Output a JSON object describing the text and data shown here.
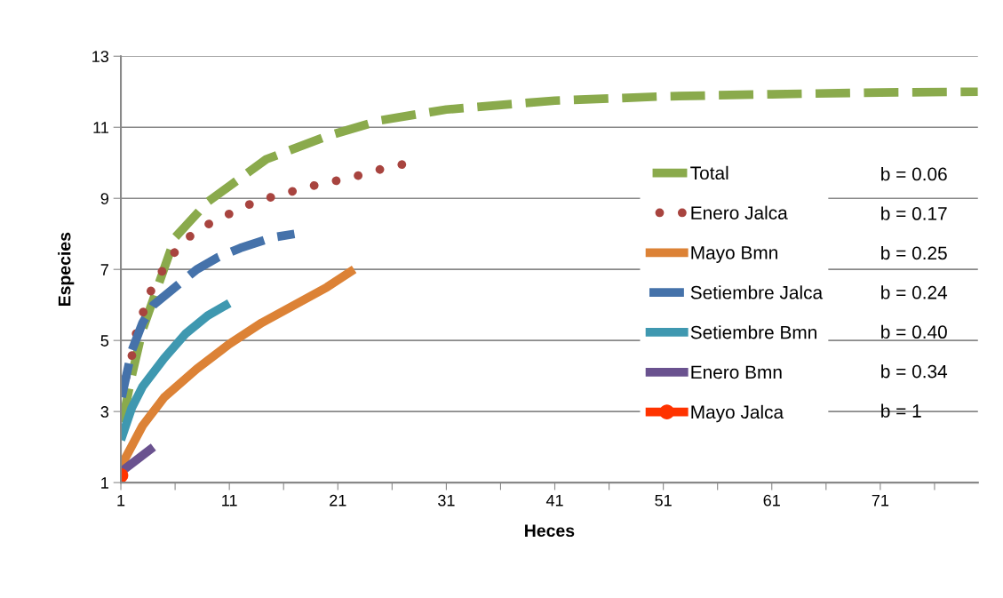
{
  "chart_data": {
    "type": "line",
    "xlabel": "Heces",
    "ylabel": "Especies",
    "xlim": [
      1,
      80
    ],
    "xticks": [
      1,
      {
        "value": 6,
        "label": null
      },
      11,
      {
        "value": 16,
        "label": null
      },
      21,
      {
        "value": 26,
        "label": null
      },
      31,
      {
        "value": 36,
        "label": null
      },
      41,
      {
        "value": 46,
        "label": null
      },
      51,
      {
        "value": 56,
        "label": null
      },
      61,
      {
        "value": 66,
        "label": null
      },
      71,
      {
        "value": 76,
        "label": null
      }
    ],
    "ylim": [
      1,
      13
    ],
    "yticks": [
      1,
      3,
      5,
      7,
      9,
      11,
      13
    ],
    "grid": "y",
    "legend": "right",
    "series": [
      {
        "name": "Total",
        "color": "#8aaa4c",
        "line_style": "dashed",
        "x": [
          1,
          2,
          3,
          4.5,
          6,
          9,
          14.4,
          20,
          25,
          31,
          41,
          51,
          61,
          71,
          80
        ],
        "values": [
          2.5,
          4.0,
          5.3,
          6.6,
          7.9,
          8.9,
          10.1,
          10.75,
          11.2,
          11.5,
          11.75,
          11.87,
          11.93,
          11.98,
          12.0
        ]
      },
      {
        "name": "Enero Jalca",
        "color": "#a8443f",
        "line_style": "dotted",
        "x": [
          1,
          1.9,
          2.2,
          2.9,
          3.6,
          4.7,
          6,
          7.6,
          9.5,
          11.6,
          13.7,
          15.8,
          17.9,
          20.2,
          22.4,
          24.7,
          26.9
        ],
        "values": [
          3.6,
          4.3,
          5.0,
          5.65,
          6.3,
          6.9,
          7.5,
          8.0,
          8.35,
          8.65,
          8.95,
          9.1,
          9.3,
          9.45,
          9.6,
          9.8,
          9.95
        ]
      },
      {
        "name": "Mayo Bmn",
        "color": "#dc8236",
        "line_style": "solid",
        "x": [
          1,
          3,
          5,
          8,
          11,
          14,
          17,
          20,
          22.5
        ],
        "values": [
          1.45,
          2.6,
          3.4,
          4.2,
          4.9,
          5.5,
          6.0,
          6.5,
          7.0
        ]
      },
      {
        "name": "Setiembre Jalca",
        "color": "#4572aa",
        "line_style": "dashed",
        "x": [
          1,
          2,
          3,
          4,
          6,
          8,
          10,
          12,
          15,
          17
        ],
        "values": [
          3.3,
          4.7,
          5.5,
          6.0,
          6.5,
          7.0,
          7.35,
          7.6,
          7.9,
          8.0
        ]
      },
      {
        "name": "Setiembre Bmn",
        "color": "#3f98b0",
        "line_style": "solid",
        "x": [
          1,
          2,
          3,
          5,
          7,
          9,
          11
        ],
        "values": [
          2.2,
          3.1,
          3.7,
          4.5,
          5.2,
          5.7,
          6.05
        ]
      },
      {
        "name": "Enero Bmn",
        "color": "#6a528f",
        "line_style": "solid",
        "x": [
          1,
          4
        ],
        "values": [
          1.3,
          2.0
        ]
      },
      {
        "name": "Mayo Jalca",
        "color": "#ff3300",
        "line_style": "solid",
        "marker": "circle",
        "x": [
          1
        ],
        "values": [
          1.2
        ]
      }
    ],
    "annotations": [
      "b = 0.06",
      "b = 0.17",
      "b = 0.25",
      "b = 0.24",
      "b = 0.40",
      "b = 0.34",
      "b = 1"
    ]
  }
}
